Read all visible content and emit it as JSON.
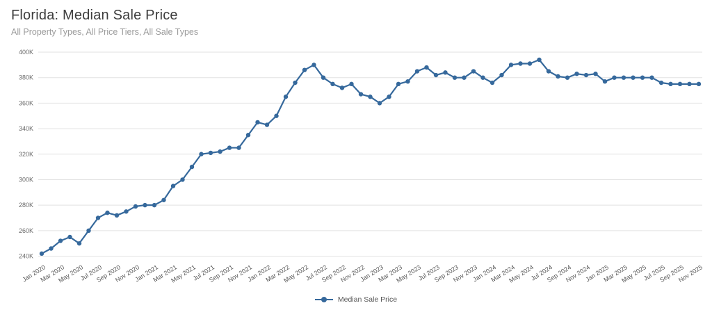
{
  "header": {
    "title": "Florida: Median Sale Price",
    "subtitle": "All Property Types, All Price Tiers, All Sale Types"
  },
  "legend": {
    "label": "Median Sale Price"
  },
  "colors": {
    "background": "#ffffff",
    "line": "#36699c",
    "marker": "#36699c",
    "grid": "#e2e2e2",
    "y_label": "#6b6b6b",
    "x_label": "#555555",
    "title": "#3d3d3d",
    "subtitle": "#9b9b9b",
    "legend_text": "#555555"
  },
  "chart_data": {
    "type": "line",
    "title": "Florida: Median Sale Price",
    "subtitle": "All Property Types, All Price Tiers, All Sale Types",
    "xlabel": "",
    "ylabel": "",
    "ylim": [
      240000,
      400000
    ],
    "grid": "horizontal",
    "legend_position": "bottom-center",
    "x_tick_step": 2,
    "y_ticks": [
      {
        "value": 240000,
        "label": "240K"
      },
      {
        "value": 260000,
        "label": "260K"
      },
      {
        "value": 280000,
        "label": "280K"
      },
      {
        "value": 300000,
        "label": "300K"
      },
      {
        "value": 320000,
        "label": "320K"
      },
      {
        "value": 340000,
        "label": "340K"
      },
      {
        "value": 360000,
        "label": "360K"
      },
      {
        "value": 380000,
        "label": "380K"
      },
      {
        "value": 400000,
        "label": "400K"
      }
    ],
    "x": [
      "Jan 2020",
      "Feb 2020",
      "Mar 2020",
      "Apr 2020",
      "May 2020",
      "Jun 2020",
      "Jul 2020",
      "Aug 2020",
      "Sep 2020",
      "Oct 2020",
      "Nov 2020",
      "Dec 2020",
      "Jan 2021",
      "Feb 2021",
      "Mar 2021",
      "Apr 2021",
      "May 2021",
      "Jun 2021",
      "Jul 2021",
      "Aug 2021",
      "Sep 2021",
      "Oct 2021",
      "Nov 2021",
      "Dec 2021",
      "Jan 2022",
      "Feb 2022",
      "Mar 2022",
      "Apr 2022",
      "May 2022",
      "Jun 2022",
      "Jul 2022",
      "Aug 2022",
      "Sep 2022",
      "Oct 2022",
      "Nov 2022",
      "Dec 2022",
      "Jan 2023",
      "Feb 2023",
      "Mar 2023",
      "Apr 2023",
      "May 2023",
      "Jun 2023",
      "Jul 2023",
      "Aug 2023",
      "Sep 2023",
      "Oct 2023",
      "Nov 2023",
      "Dec 2023",
      "Jan 2024",
      "Feb 2024",
      "Mar 2024",
      "Apr 2024",
      "May 2024",
      "Jun 2024",
      "Jul 2024",
      "Aug 2024",
      "Sep 2024",
      "Oct 2024",
      "Nov 2024",
      "Dec 2024",
      "Jan 2025",
      "Feb 2025",
      "Mar 2025",
      "Apr 2025",
      "May 2025",
      "Jun 2025",
      "Jul 2025",
      "Aug 2025",
      "Sep 2025",
      "Oct 2025",
      "Nov 2025"
    ],
    "series": [
      {
        "name": "Median Sale Price",
        "values": [
          242000,
          246000,
          252000,
          255000,
          250000,
          260000,
          270000,
          274000,
          272000,
          275000,
          279000,
          280000,
          280000,
          284000,
          295000,
          300000,
          310000,
          320000,
          321000,
          322000,
          325000,
          325000,
          335000,
          345000,
          343000,
          350000,
          365000,
          376000,
          386000,
          390000,
          380000,
          375000,
          372000,
          375000,
          367000,
          365000,
          360000,
          365000,
          375000,
          377000,
          385000,
          388000,
          382000,
          384000,
          380000,
          380000,
          385000,
          380000,
          376000,
          382000,
          390000,
          391000,
          391000,
          394000,
          385000,
          381000,
          380000,
          383000,
          382000,
          383000,
          377000,
          380000,
          380000,
          380000,
          380000,
          380000,
          376000,
          375000,
          375000,
          375000,
          375000
        ]
      }
    ]
  }
}
